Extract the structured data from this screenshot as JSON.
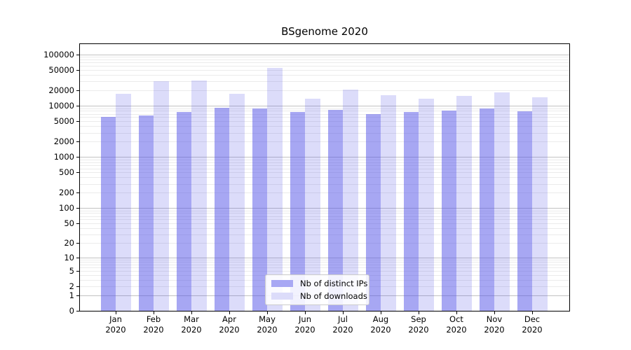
{
  "title": "BSgenome 2020",
  "chart_data": {
    "type": "bar",
    "title": "BSgenome 2020",
    "categories": [
      "Jan 2020",
      "Feb 2020",
      "Mar 2020",
      "Apr 2020",
      "May 2020",
      "Jun 2020",
      "Jul 2020",
      "Aug 2020",
      "Sep 2020",
      "Oct 2020",
      "Nov 2020",
      "Dec 2020"
    ],
    "series": [
      {
        "name": "Nb of distinct IPs",
        "values": [
          6000,
          6500,
          7600,
          9200,
          8900,
          7700,
          8300,
          7000,
          7600,
          8000,
          8900,
          7800
        ]
      },
      {
        "name": "Nb of downloads",
        "values": [
          17000,
          30300,
          31500,
          17000,
          54500,
          14000,
          20700,
          16100,
          13800,
          15600,
          18300,
          14700
        ]
      }
    ],
    "xlabel": "",
    "ylabel": "",
    "yscale": "log1p",
    "ylim": [
      0,
      165000
    ],
    "yticks": [
      0,
      1,
      2,
      5,
      10,
      20,
      50,
      100,
      200,
      500,
      1000,
      2000,
      5000,
      10000,
      20000,
      50000,
      100000
    ],
    "grid": "horizontal, log minor + major lines",
    "legend_position": "inside bottom-center"
  },
  "legend": {
    "items": [
      {
        "label": "Nb of distinct IPs",
        "color": "#a8a8f4"
      },
      {
        "label": "Nb of downloads",
        "color": "#dcdcfa"
      }
    ]
  },
  "colors": {
    "bar_ips": "rgba(80,80,232,0.5)",
    "bar_downloads": "rgba(80,80,232,0.2)",
    "grid_major": "#c2c2c2",
    "grid_minor": "#ebebeb",
    "spine": "#000000",
    "background": "#ffffff",
    "text": "#000000"
  }
}
